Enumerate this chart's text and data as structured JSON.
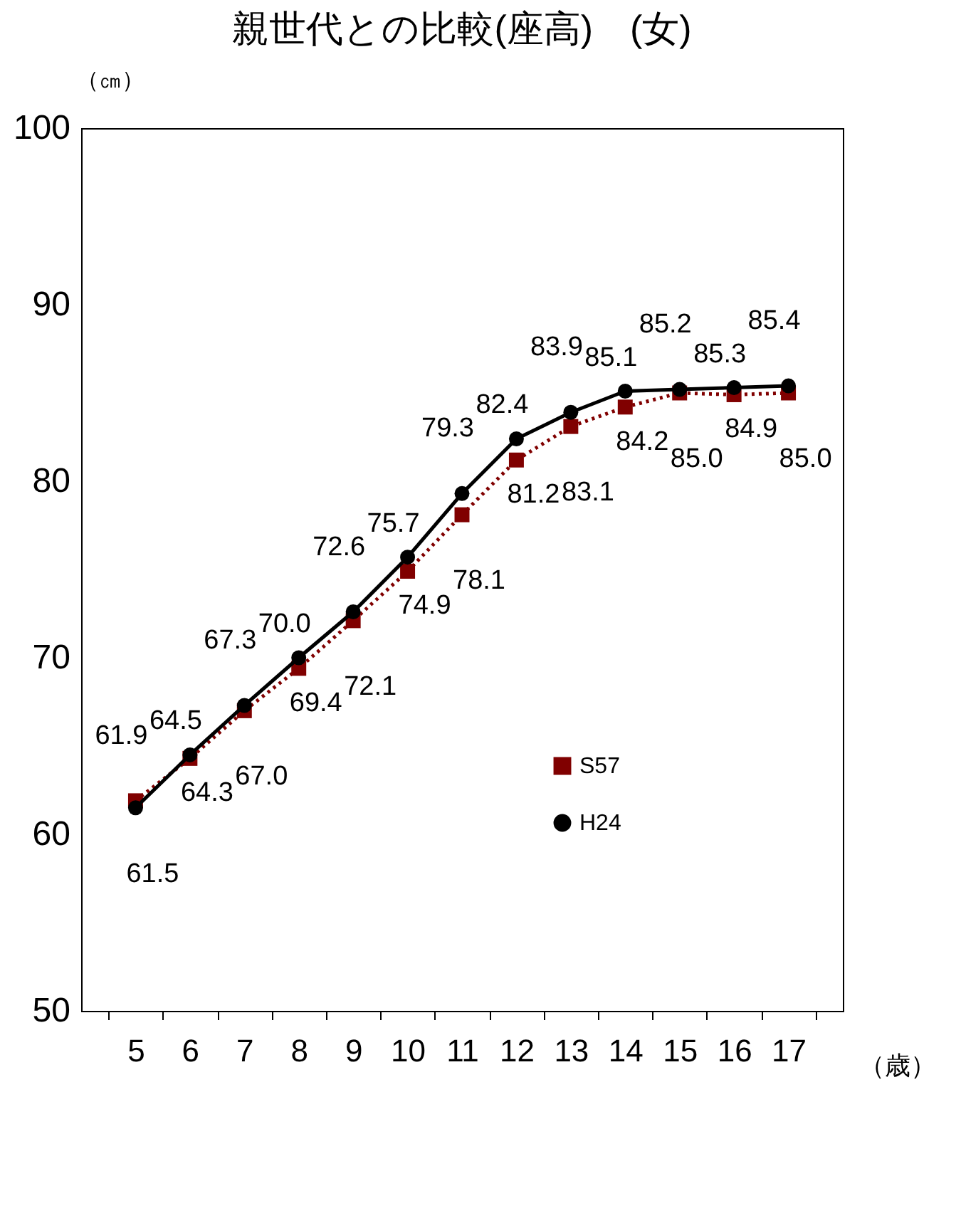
{
  "chart_data": {
    "type": "line",
    "title": "親世代との比較(座高)　(女)",
    "ylabel": "（㎝）",
    "xlabel": "（歳）",
    "categories": [
      "5",
      "6",
      "7",
      "8",
      "9",
      "10",
      "11",
      "12",
      "13",
      "14",
      "15",
      "16",
      "17"
    ],
    "series": [
      {
        "name": "S57",
        "color": "#800000",
        "marker": "square",
        "line_style": "dotted",
        "values": [
          61.9,
          64.3,
          67.0,
          69.4,
          72.1,
          74.9,
          78.1,
          81.2,
          83.1,
          84.2,
          85.0,
          84.9,
          85.0
        ],
        "value_labels": [
          "61.9",
          "64.3",
          "67.0",
          "69.4",
          "72.1",
          "74.9",
          "78.1",
          "81.2",
          "83.1",
          "84.2",
          "85.0",
          "84.9",
          "85.0"
        ]
      },
      {
        "name": "H24",
        "color": "#000000",
        "marker": "circle",
        "line_style": "solid",
        "values": [
          61.5,
          64.5,
          67.3,
          70.0,
          72.6,
          75.7,
          79.3,
          82.4,
          83.9,
          85.1,
          85.2,
          85.3,
          85.4
        ],
        "value_labels": [
          "61.5",
          "64.5",
          "67.3",
          "70.0",
          "72.6",
          "75.7",
          "79.3",
          "82.4",
          "83.9",
          "85.1",
          "85.2",
          "85.3",
          "85.4"
        ]
      }
    ],
    "ylim": [
      50,
      100
    ],
    "yticks": [
      50,
      60,
      70,
      80,
      90,
      100
    ],
    "grid": false,
    "legend": "bottom right"
  }
}
